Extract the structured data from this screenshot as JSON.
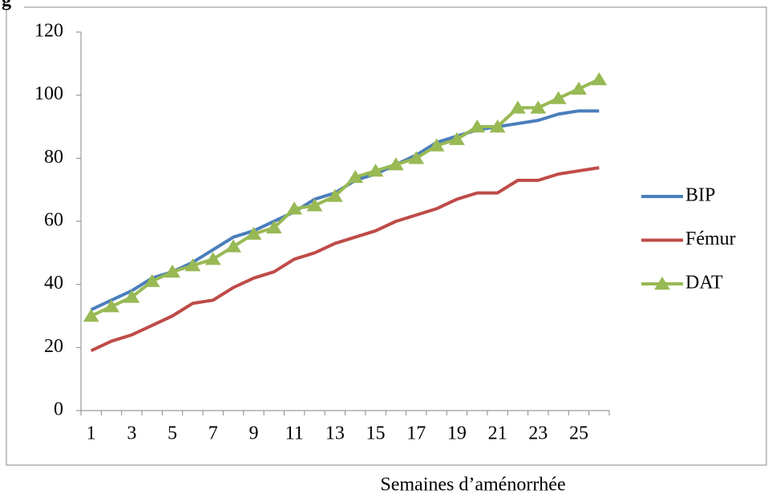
{
  "chart_data": {
    "type": "line",
    "y_axis_label": "g",
    "x_label": "Semaines d’aménorrhée",
    "categories": [
      1,
      null,
      3,
      null,
      5,
      null,
      7,
      null,
      9,
      null,
      11,
      null,
      13,
      null,
      15,
      null,
      17,
      null,
      19,
      null,
      21,
      null,
      23,
      null,
      25,
      null
    ],
    "series": [
      {
        "name": "BIP",
        "color": "#4a7ebb",
        "values": [
          32,
          35,
          38,
          42,
          44,
          47,
          51,
          55,
          57,
          60,
          63,
          67,
          69,
          73,
          75,
          78,
          81,
          85,
          87,
          89,
          90,
          91,
          92,
          94,
          95,
          95
        ]
      },
      {
        "name": "Fémur",
        "color": "#be4b48",
        "values": [
          19,
          22,
          24,
          27,
          30,
          34,
          35,
          39,
          42,
          44,
          48,
          50,
          53,
          55,
          57,
          60,
          62,
          64,
          67,
          69,
          69,
          73,
          73,
          75,
          76,
          77
        ]
      },
      {
        "name": "DAT",
        "color": "#98b954",
        "marker": "triangle",
        "values": [
          30,
          33,
          36,
          41,
          44,
          46,
          48,
          52,
          56,
          58,
          64,
          65,
          68,
          74,
          76,
          78,
          80,
          84,
          86,
          90,
          90,
          96,
          96,
          99,
          102,
          105
        ]
      }
    ],
    "ylim": [
      0,
      120
    ],
    "yticks": [
      0,
      20,
      40,
      60,
      80,
      100,
      120
    ],
    "grid": false,
    "legend": "right"
  }
}
